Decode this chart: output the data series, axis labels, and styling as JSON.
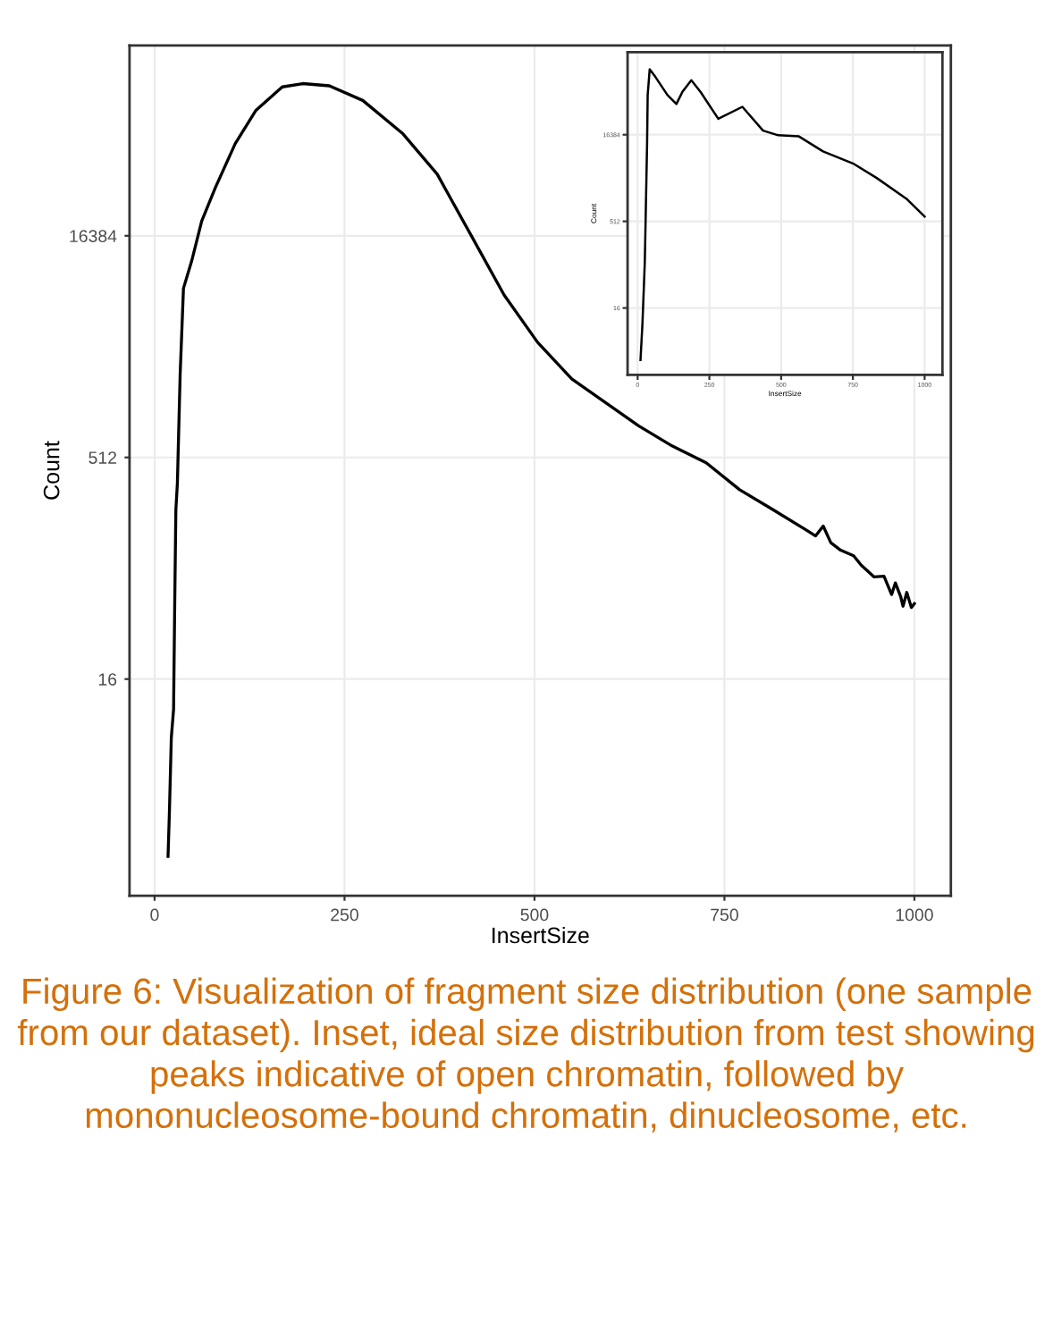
{
  "chart_data": [
    {
      "type": "line",
      "xlabel": "InsertSize",
      "ylabel": "Count",
      "log": "y",
      "grid": true,
      "marker": "none",
      "line_style": "solid",
      "xlim": [
        -33,
        1048
      ],
      "xticks": [
        0,
        250,
        500,
        750,
        1000
      ],
      "ylim": [
        0.54,
        321000
      ],
      "yticks": [
        16,
        512,
        16384
      ],
      "series": [
        {
          "color": "#000000",
          "x": [
            17.7,
            19.5,
            22,
            25,
            26.5,
            28,
            30,
            33.6,
            38,
            48.7,
            62,
            80,
            106,
            133,
            168,
            195,
            230,
            274,
            327,
            372,
            416,
            460,
            504,
            549,
            593,
            637,
            681,
            726,
            770,
            814,
            858,
            870,
            880,
            890,
            903,
            920,
            930,
            947,
            960,
            970,
            975,
            982,
            985,
            990,
            996,
            1000
          ],
          "values": [
            1,
            2,
            6.4,
            10,
            52,
            226,
            342,
            1845,
            7200,
            11000,
            20600,
            34800,
            69000,
            116000,
            168000,
            177000,
            171000,
            136000,
            80600,
            42900,
            16700,
            6500,
            3100,
            1750,
            1210,
            840,
            613,
            471,
            309,
            226,
            164,
            150,
            175,
            135,
            120,
            110,
            95,
            79,
            80,
            60,
            72,
            58,
            50,
            62,
            49,
            52
          ]
        }
      ],
      "annotations": [
        "Figure 6: Visualization of fragment size distribution (one sample from our dataset). Inset, ideal size distribution from test showing peaks indicative of open chromatin, followed by mononucleosome-bound chromatin, dinucleosome, etc."
      ]
    },
    {
      "type": "line",
      "xlabel": "InsertSize",
      "ylabel": "Count",
      "log": "y",
      "grid": true,
      "marker": "none",
      "line_style": "solid",
      "xlim": [
        -35,
        1062
      ],
      "xticks": [
        0,
        250,
        500,
        750,
        1000
      ],
      "ylim": [
        1.1,
        444000
      ],
      "yticks": [
        16,
        512,
        16384
      ],
      "series": [
        {
          "color": "#000000",
          "x": [
            10,
            17,
            25,
            33,
            35,
            42,
            62,
            104,
            135,
            156,
            187,
            219,
            281,
            365,
            437,
            490,
            562,
            646,
            750,
            833,
            937,
            1000
          ],
          "values": [
            2,
            9,
            100,
            12000,
            80000,
            224000,
            165000,
            80000,
            56000,
            91000,
            145000,
            91000,
            31000,
            50000,
            19300,
            16000,
            15300,
            8400,
            5200,
            2900,
            1260,
            620
          ]
        }
      ]
    }
  ]
}
